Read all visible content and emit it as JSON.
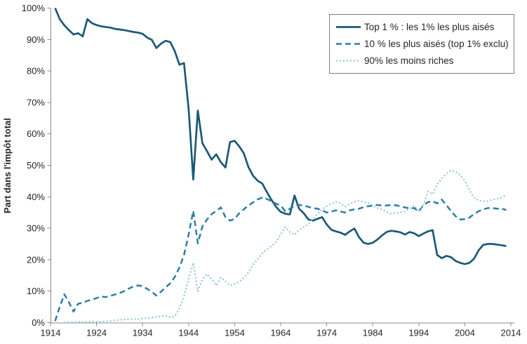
{
  "chart_data": {
    "type": "line",
    "title": "",
    "ylabel": "Part dans l'impôt total",
    "xlabel": "",
    "xlim": [
      1914,
      2014
    ],
    "ylim": [
      0,
      100
    ],
    "grid": false,
    "legend_position": "top-right",
    "axis_color": "#8c8c8c",
    "text_color": "#262626",
    "x_ticks": [
      "1914",
      "1924",
      "1934",
      "1944",
      "1954",
      "1964",
      "1974",
      "1984",
      "1994",
      "2004",
      "2014"
    ],
    "y_ticks": [
      "0%",
      "10%",
      "20%",
      "30%",
      "40%",
      "50%",
      "60%",
      "70%",
      "80%",
      "90%",
      "100%"
    ],
    "series": [
      {
        "name": "Top 1 % : les 1% les plus aisés",
        "style": "solid",
        "color": "#1A5A75",
        "start_year": 1915,
        "values": [
          100,
          96.5,
          94.5,
          93,
          91.6,
          92,
          91,
          96.5,
          95.2,
          94.6,
          94.2,
          94,
          93.8,
          93.4,
          93.2,
          93,
          92.7,
          92.4,
          92.2,
          91.8,
          90.6,
          89.9,
          87.3,
          88.7,
          89.6,
          89.2,
          86.3,
          82,
          82.5,
          68,
          45.5,
          67.4,
          57,
          54.5,
          51.8,
          53.5,
          51,
          49.3,
          57.4,
          57.8,
          56,
          53.8,
          49.4,
          46.7,
          45.1,
          44.2,
          41.5,
          39,
          36.8,
          35.2,
          34.6,
          34.4,
          40.4,
          36.2,
          34.8,
          32.8,
          32.4,
          33,
          33.5,
          31.2,
          29.5,
          29,
          28.6,
          27.9,
          29,
          29.9,
          27.2,
          25.4,
          25,
          25.4,
          26.4,
          27.7,
          28.8,
          29.2,
          29,
          28.7,
          28,
          28.8,
          28.4,
          27.5,
          28.3,
          29,
          29.4,
          21.5,
          20.5,
          21.2,
          20.8,
          19.6,
          19,
          18.6,
          19,
          20.3,
          23,
          24.7,
          25,
          25,
          24.8,
          24.6,
          24.3
        ]
      },
      {
        "name": "10 % les plus aisés (top 1% exclu)",
        "style": "dashed",
        "color": "#2B7FA5",
        "start_year": 1915,
        "values": [
          0.5,
          5,
          9,
          6.5,
          3.5,
          6,
          6.3,
          6.9,
          7.3,
          7.8,
          8.3,
          8.1,
          8.5,
          8.9,
          9.4,
          10,
          10.8,
          11.5,
          11.8,
          11.6,
          10.7,
          9.8,
          8.6,
          9.8,
          11.2,
          12.5,
          14.5,
          17.5,
          21.5,
          28,
          35.5,
          25.2,
          30.6,
          32.8,
          34.5,
          35.5,
          36.6,
          33.5,
          32.4,
          33,
          34.8,
          36,
          37.3,
          38.2,
          39.2,
          39.7,
          39.3,
          38.6,
          37.8,
          37.2,
          35.4,
          36.2,
          37,
          37.4,
          37.2,
          36.8,
          36.4,
          36.2,
          35.7,
          35,
          35.3,
          35.7,
          35.3,
          35,
          35.7,
          36,
          36.2,
          36.7,
          37,
          37.2,
          37.4,
          37.2,
          37.2,
          37.4,
          37.3,
          37,
          36.6,
          36.3,
          36.4,
          35.3,
          37.4,
          38.3,
          38.6,
          37.9,
          39.1,
          37.3,
          35.5,
          33.8,
          32.8,
          32.9,
          33.4,
          34.5,
          35.4,
          36,
          36.4,
          36.4,
          36.2,
          36.2,
          35.8
        ]
      },
      {
        "name": "90% les moins riches",
        "style": "dotted",
        "color": "#8FC3DC",
        "start_year": 1917,
        "values": [
          0,
          0.1,
          0.1,
          0.2,
          0.2,
          0.2,
          0.3,
          0.3,
          0.3,
          0.4,
          0.5,
          0.7,
          0.9,
          1,
          1.1,
          1.1,
          1.1,
          1.3,
          1.4,
          1.6,
          1.8,
          2,
          2.2,
          1.7,
          2,
          4.5,
          8.3,
          14,
          19,
          10,
          13.8,
          15.4,
          13.8,
          11.8,
          14.3,
          13.2,
          11.8,
          12.3,
          13,
          14.2,
          16,
          18.5,
          20.1,
          22,
          23.4,
          24.3,
          25.7,
          28,
          30.4,
          28.8,
          27.9,
          29.5,
          30.4,
          31.2,
          33,
          34.6,
          36,
          37,
          37.8,
          38.4,
          37.9,
          36.9,
          37.7,
          38.4,
          38.8,
          38.4,
          38,
          37.3,
          36.4,
          36,
          35.2,
          34.6,
          34.8,
          35,
          35.3,
          36.2,
          37.3,
          35.2,
          37.5,
          41.7,
          40.8,
          44,
          45.8,
          47.3,
          48.4,
          48,
          46.9,
          45.1,
          42,
          39.7,
          38.8,
          38.6,
          38.6,
          39.1,
          39.4,
          39.7,
          40.5
        ]
      }
    ]
  }
}
